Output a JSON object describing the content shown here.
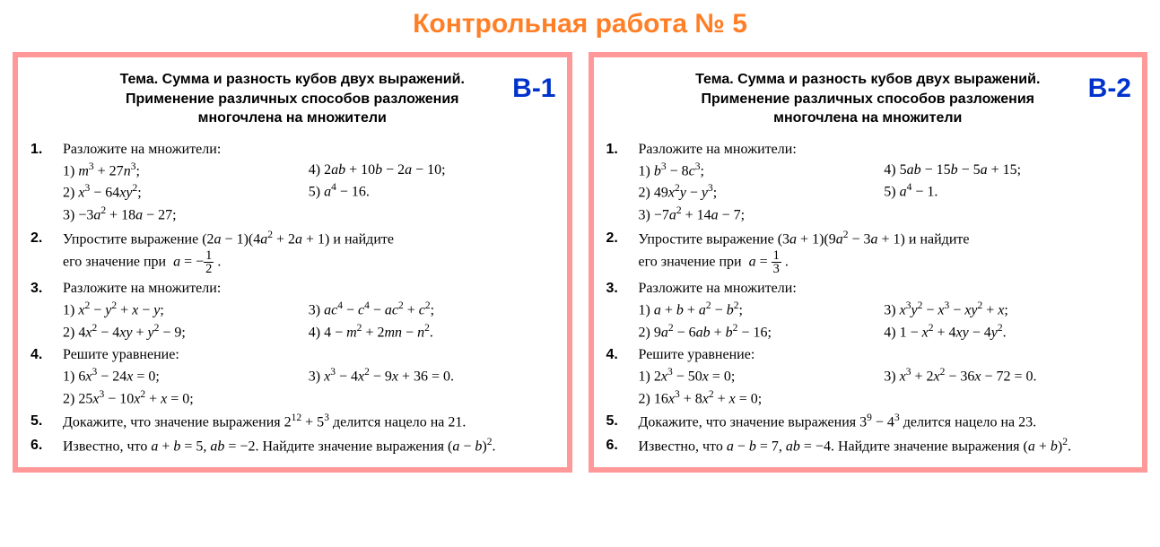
{
  "title": "Контрольная работа № 5",
  "colors": {
    "title": "#ff7f27",
    "card_border": "#ff9999",
    "badge": "#0033cc",
    "background": "#ffffff"
  },
  "theme_label": "Тема.",
  "theme_text_line1": "Сумма и разность кубов двух выражений.",
  "theme_text_line2": "Применение различных способов разложения",
  "theme_text_line3": "многочлена на множители",
  "variants": [
    {
      "badge": "В-1",
      "problems": [
        {
          "num": "1.",
          "title": "Разложите на множители:",
          "cols": [
            [
              "1) <i>m</i><sup>3</sup> + 27<i>n</i><sup>3</sup>;",
              "2) <i>x</i><sup>3</sup> − 64<i>xy</i><sup>2</sup>;",
              "3) −3<i>a</i><sup>2</sup> + 18<i>a</i> − 27;"
            ],
            [
              "4) 2<i>ab</i> + 10<i>b</i> − 2<i>a</i> − 10;",
              "5) <i>a</i><sup>4</sup> − 16."
            ]
          ]
        },
        {
          "num": "2.",
          "html": "Упростите выражение (2<i>a</i> − 1)(4<i>a</i><sup>2</sup> + 2<i>a</i> + 1) и найдите<br>его значение при &nbsp;<i>a</i> = −<span class='frac'><span class='top'>1</span><span class='bot'>2</span></span> ."
        },
        {
          "num": "3.",
          "title": "Разложите на множители:",
          "cols": [
            [
              "1) <i>x</i><sup>2</sup> − <i>y</i><sup>2</sup> + <i>x</i> − <i>y</i>;",
              "2) 4<i>x</i><sup>2</sup> − 4<i>xy</i> + <i>y</i><sup>2</sup> − 9;"
            ],
            [
              "3) <i>ac</i><sup>4</sup> − <i>c</i><sup>4</sup> − <i>ac</i><sup>2</sup> + <i>c</i><sup>2</sup>;",
              "4) 4 − <i>m</i><sup>2</sup> + 2<i>mn</i> − <i>n</i><sup>2</sup>."
            ]
          ]
        },
        {
          "num": "4.",
          "title": "Решите уравнение:",
          "cols": [
            [
              "1) 6<i>x</i><sup>3</sup> − 24<i>x</i> = 0;",
              "2) 25<i>x</i><sup>3</sup> − 10<i>x</i><sup>2</sup> + <i>x</i> = 0;"
            ],
            [
              "3) <i>x</i><sup>3</sup> − 4<i>x</i><sup>2</sup> − 9<i>x</i> + 36 = 0."
            ]
          ]
        },
        {
          "num": "5.",
          "html": "Докажите, что значение выражения 2<sup>12</sup> + 5<sup>3</sup> делится нацело на 21."
        },
        {
          "num": "6.",
          "html": "Известно, что <i>a</i> + <i>b</i> = 5, <i>ab</i> = −2. Найдите значение выражения (<i>a</i> − <i>b</i>)<sup>2</sup>."
        }
      ]
    },
    {
      "badge": "В-2",
      "problems": [
        {
          "num": "1.",
          "title": "Разложите на множители:",
          "cols": [
            [
              "1) <i>b</i><sup>3</sup> − 8<i>c</i><sup>3</sup>;",
              "2) 49<i>x</i><sup>2</sup><i>y</i> − <i>y</i><sup>3</sup>;",
              "3) −7<i>a</i><sup>2</sup> + 14<i>a</i> − 7;"
            ],
            [
              "4) 5<i>ab</i> − 15<i>b</i> − 5<i>a</i> + 15;",
              "5) <i>a</i><sup>4</sup> − 1."
            ]
          ]
        },
        {
          "num": "2.",
          "html": "Упростите выражение (3<i>a</i> + 1)(9<i>a</i><sup>2</sup> − 3<i>a</i> + 1) и найдите<br>его значение при &nbsp;<i>a</i> = <span class='frac'><span class='top'>1</span><span class='bot'>3</span></span> ."
        },
        {
          "num": "3.",
          "title": "Разложите на множители:",
          "cols": [
            [
              "1) <i>a</i> + <i>b</i> + <i>a</i><sup>2</sup> − <i>b</i><sup>2</sup>;",
              "2) 9<i>a</i><sup>2</sup> − 6<i>ab</i> + <i>b</i><sup>2</sup> − 16;"
            ],
            [
              "3) <i>x</i><sup>3</sup><i>y</i><sup>2</sup> − <i>x</i><sup>3</sup> − <i>xy</i><sup>2</sup> + <i>x</i>;",
              "4) 1 − <i>x</i><sup>2</sup> + 4<i>xy</i> − 4<i>y</i><sup>2</sup>."
            ]
          ]
        },
        {
          "num": "4.",
          "title": "Решите уравнение:",
          "cols": [
            [
              "1) 2<i>x</i><sup>3</sup> − 50<i>x</i> = 0;",
              "2) 16<i>x</i><sup>3</sup> + 8<i>x</i><sup>2</sup> + <i>x</i> = 0;"
            ],
            [
              "3) <i>x</i><sup>3</sup> + 2<i>x</i><sup>2</sup> − 36<i>x</i> − 72 = 0."
            ]
          ]
        },
        {
          "num": "5.",
          "html": "Докажите, что значение выражения 3<sup>9</sup> − 4<sup>3</sup> делится нацело на 23."
        },
        {
          "num": "6.",
          "html": "Известно, что <i>a</i> − <i>b</i> = 7, <i>ab</i> = −4. Найдите значение выражения (<i>a</i> + <i>b</i>)<sup>2</sup>."
        }
      ]
    }
  ]
}
